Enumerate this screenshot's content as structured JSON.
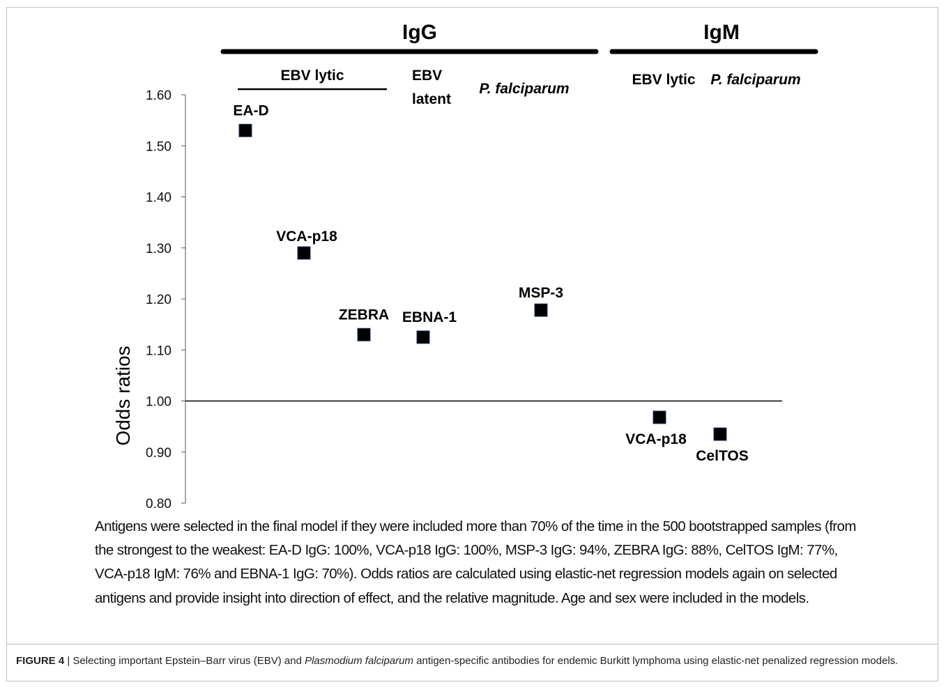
{
  "chart_data": {
    "type": "scatter",
    "ylabel": "Odds ratios",
    "ylim": [
      0.8,
      1.6
    ],
    "yticks": [
      "0.80",
      "0.90",
      "1.00",
      "1.10",
      "1.20",
      "1.30",
      "1.40",
      "1.50",
      "1.60"
    ],
    "reference_line": 1.0,
    "groups": [
      {
        "label": "IgG",
        "subgroups": [
          {
            "label": "EBV lytic",
            "points": [
              {
                "label": "EA-D",
                "value": 1.53
              },
              {
                "label": "VCA-p18",
                "value": 1.29
              },
              {
                "label": "ZEBRA",
                "value": 1.13
              }
            ]
          },
          {
            "label": "EBV latent",
            "points": [
              {
                "label": "EBNA-1",
                "value": 1.125
              }
            ]
          },
          {
            "label": "P. falciparum",
            "points": [
              {
                "label": "MSP-3",
                "value": 1.178
              }
            ]
          }
        ]
      },
      {
        "label": "IgM",
        "subgroups": [
          {
            "label": "EBV lytic",
            "points": [
              {
                "label": "VCA-p18",
                "value": 0.968
              }
            ]
          },
          {
            "label": "P. falciparum",
            "points": [
              {
                "label": "CelTOS",
                "value": 0.935
              }
            ]
          }
        ]
      }
    ],
    "marker_color": "#000000"
  },
  "note": "Antigens were selected in the final model if they were included more than 70% of the time in the 500 bootstrapped samples (from the strongest to the weakest: EA-D IgG: 100%, VCA-p18 IgG: 100%, MSP-3 IgG: 94%, ZEBRA IgG: 88%, CelTOS IgM: 77%, VCA-p18 IgM: 76% and EBNA-1 IgG: 70%). Odds ratios are calculated using elastic-net regression models again on selected antigens and provide insight into direction of effect, and the relative magnitude. Age and sex were included in the models.",
  "caption": {
    "figure_label": "FIGURE 4",
    "separator": " | ",
    "part1": "Selecting important Epstein–Barr virus (EBV) and ",
    "italic": "Plasmodium falciparum",
    "part2": " antigen-specific antibodies for endemic Burkitt lymphoma using elastic-net penalized regression models."
  }
}
